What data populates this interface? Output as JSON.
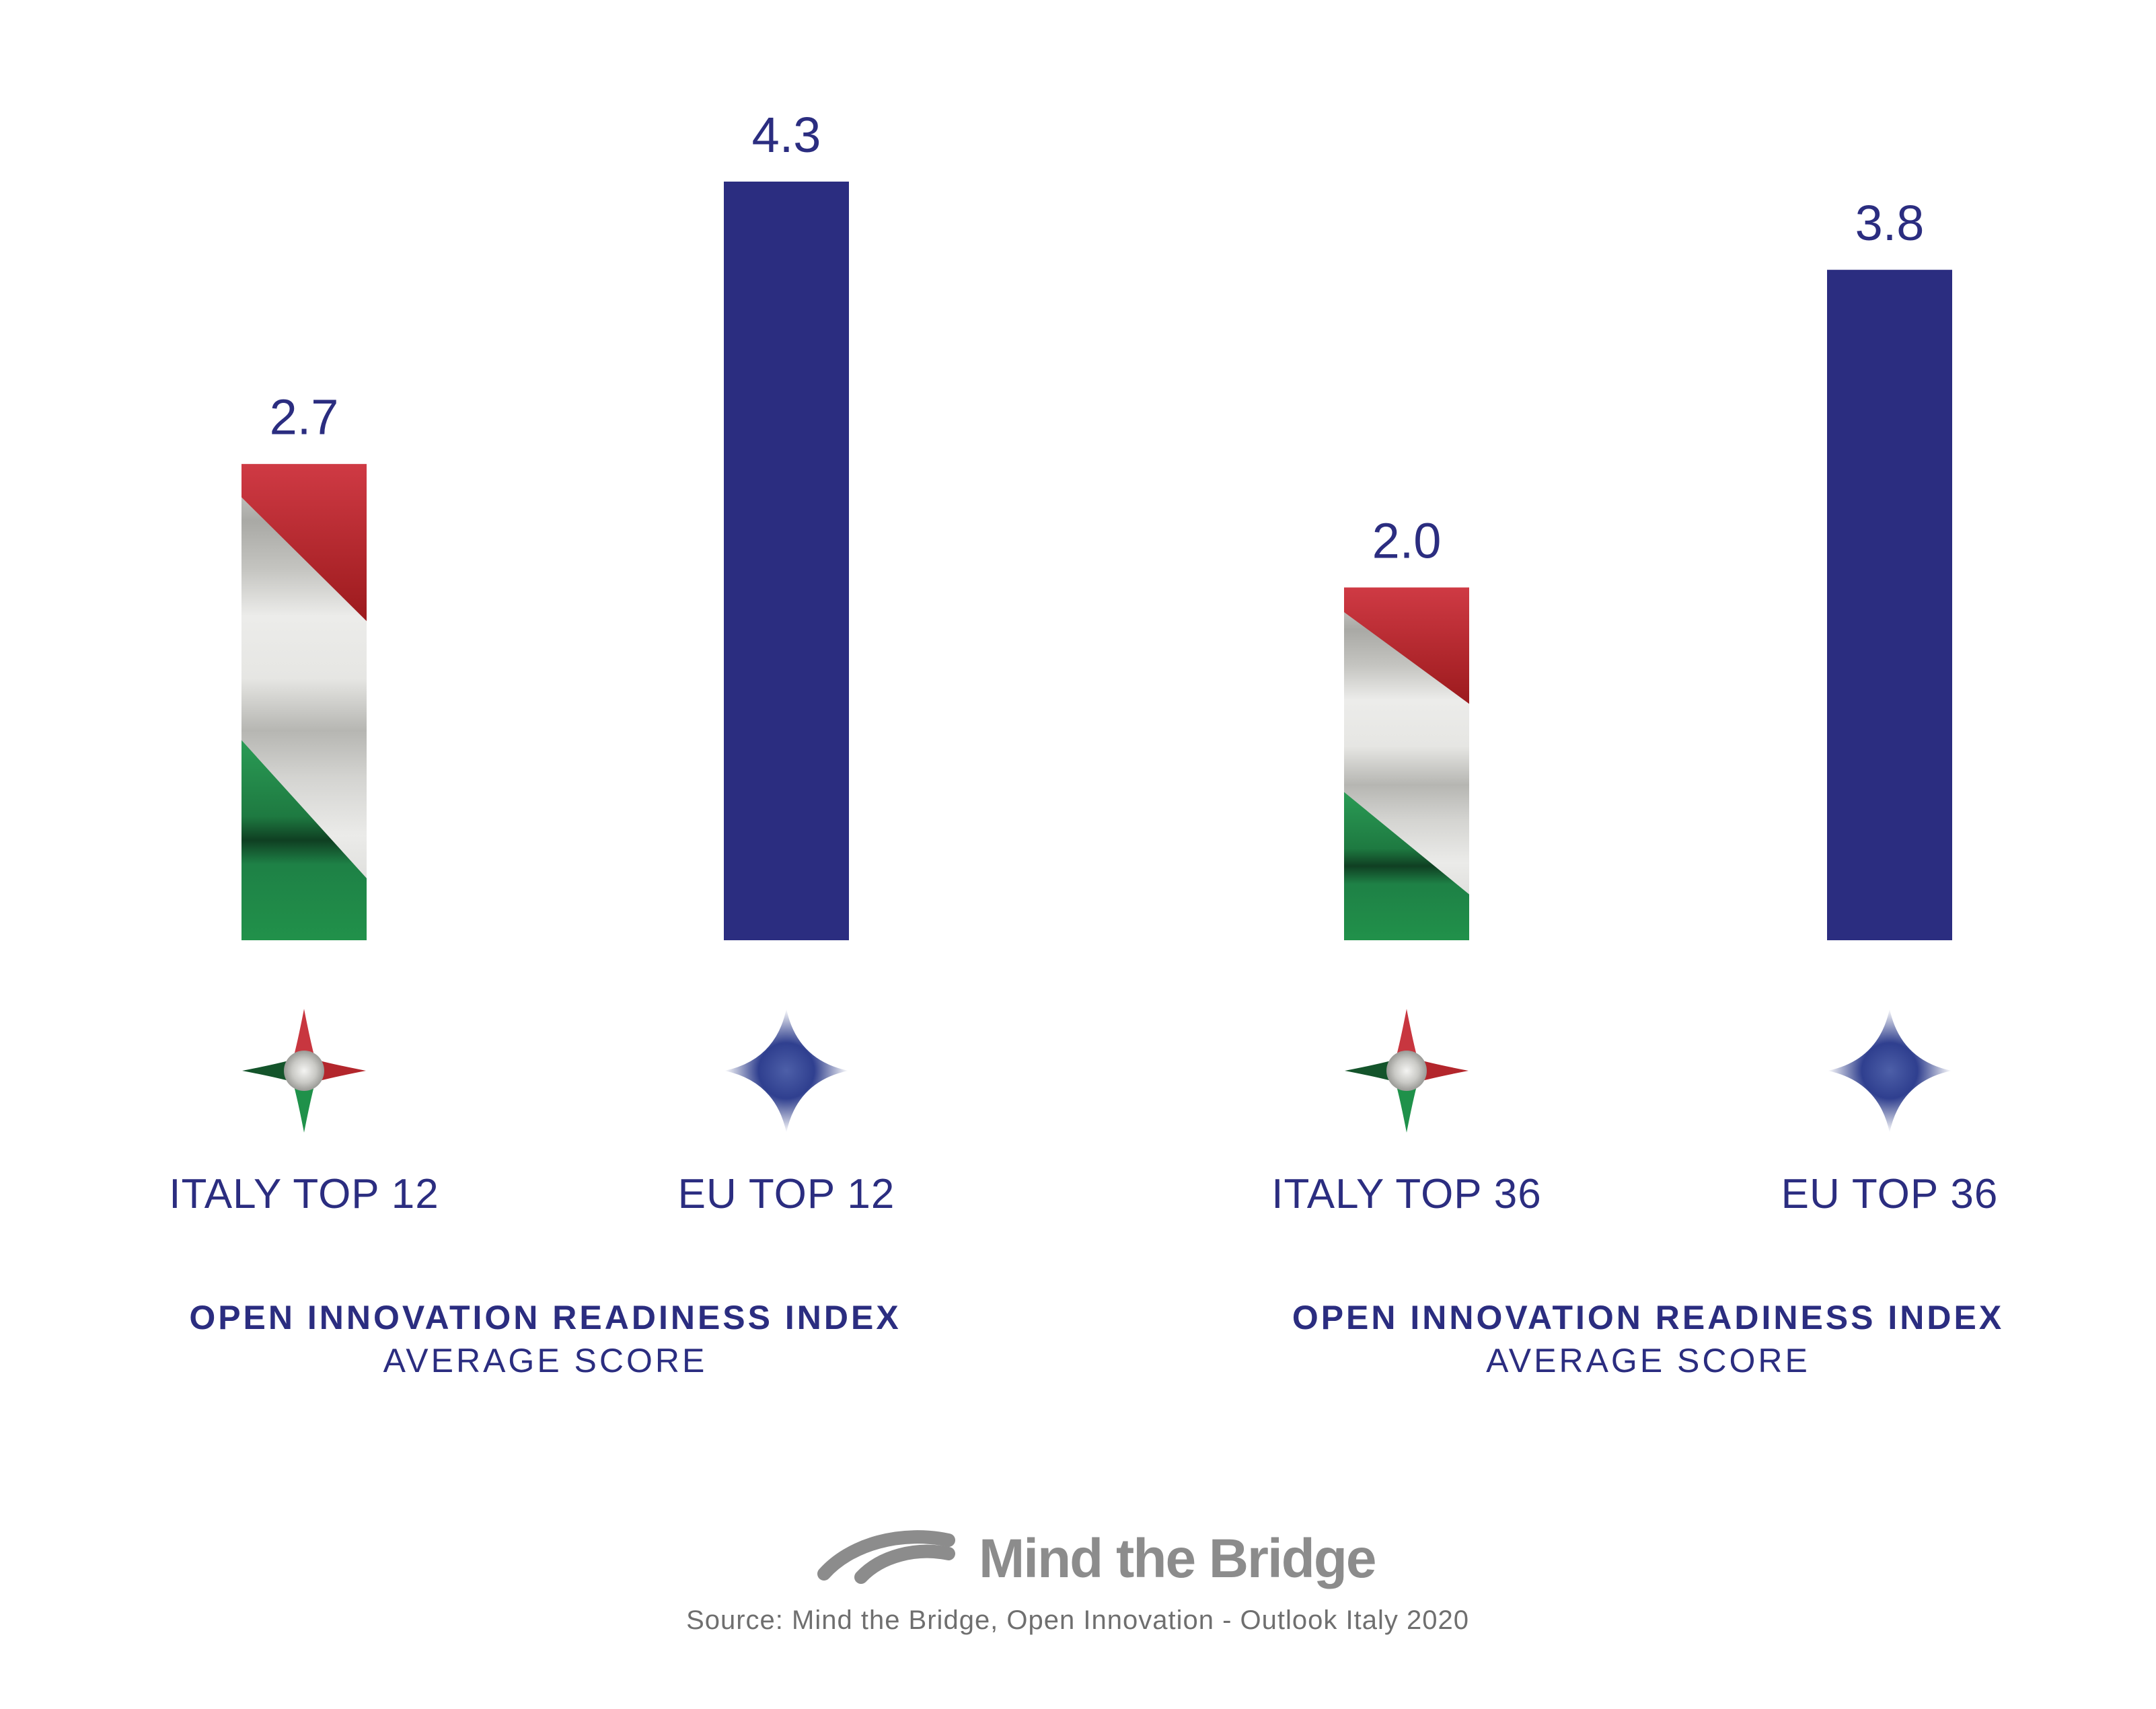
{
  "chart_data": {
    "type": "bar",
    "categories": [
      "ITALY TOP 12",
      "EU TOP 12",
      "ITALY TOP 36",
      "EU TOP 36"
    ],
    "values": [
      2.7,
      4.3,
      2.0,
      3.8
    ],
    "value_labels": [
      "2.7",
      "4.3",
      "2.0",
      "3.8"
    ],
    "ylim": [
      0,
      4.3
    ],
    "grid": false,
    "legend": "none",
    "groups": [
      {
        "title": "OPEN INNOVATION READINESS INDEX",
        "subtitle": "AVERAGE SCORE",
        "members": [
          0,
          1
        ]
      },
      {
        "title": "OPEN INNOVATION READINESS INDEX",
        "subtitle": "AVERAGE SCORE",
        "members": [
          2,
          3
        ]
      }
    ],
    "bar_styles": [
      "italy-flag",
      "eu-blue",
      "italy-flag",
      "eu-blue"
    ],
    "icons": [
      "italy-star-icon",
      "eu-star-icon",
      "italy-star-icon",
      "eu-star-icon"
    ]
  },
  "colors": {
    "eu_blue": "#2b2d80",
    "italy_red": "#c8363f",
    "italy_white": "#e8e8e6",
    "italy_green": "#1f914a",
    "brand_grey": "#8c8c8c"
  },
  "brand": {
    "name": "Mind the Bridge"
  },
  "source": "Source: Mind the Bridge, Open Innovation - Outlook Italy 2020"
}
